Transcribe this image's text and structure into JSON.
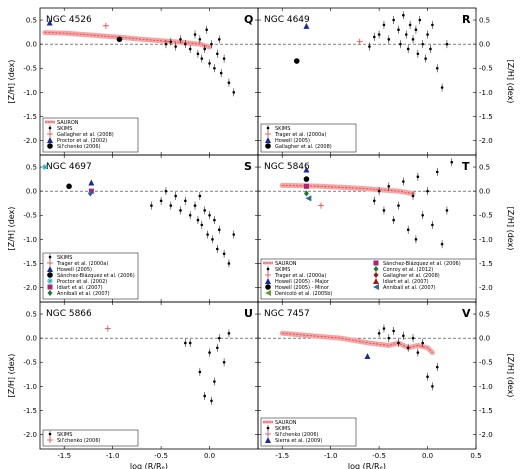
{
  "figure": {
    "xlabel": "log (R/Rₑ)",
    "ylabel": "[Z/H] (dex)",
    "xlim": [
      -1.75,
      0.5
    ],
    "ylim": [
      -2.3,
      0.75
    ],
    "xticks": [
      "-1.5",
      "-1.0",
      "-0.5",
      "0.0",
      "0.5"
    ],
    "xticks_left": [
      "-1.5",
      "-1.0",
      "-0.5",
      "0.0"
    ],
    "yticks": [
      "-2.0",
      "-1.5",
      "-1.0",
      "-0.5",
      "0.0",
      "0.5"
    ]
  },
  "colors": {
    "sauron": "#e33b3b",
    "sauron_band": "#f4a6a6",
    "skims": "#000000",
    "trager": "#e33b3b",
    "howell": "#1a2a9c",
    "proctor": "#0ab0c0",
    "gallagher": "#e33b3b",
    "silchenko": "#e33b3b",
    "sanchez": "#b0207a",
    "idiart": "#9c1a1a",
    "annibali": "#2a6a9c",
    "conroy": "#1a7a3a",
    "denicolo": "#6a9c2a",
    "sierra": "#1a2a9c"
  },
  "chart_data": [
    {
      "type": "scatter",
      "galaxy": "NGC 4526",
      "panel": "Q",
      "legend": [
        {
          "label": "SAURON",
          "marker": "band"
        },
        {
          "label": "SKIMS",
          "marker": "dot"
        },
        {
          "label": "Gallagher et al. (2008)",
          "marker": "plus"
        },
        {
          "label": "Proctor et al. (2002)",
          "marker": "triangle"
        },
        {
          "label": "Sil'chenko (2006)",
          "marker": "circle"
        }
      ],
      "band": {
        "x": [
          -1.7,
          -1.5,
          -1.3,
          -1.1,
          -0.9,
          -0.7,
          -0.5,
          -0.3,
          -0.1,
          0.0
        ],
        "y": [
          0.24,
          0.23,
          0.2,
          0.17,
          0.14,
          0.1,
          0.07,
          0.04,
          0.0,
          -0.06
        ]
      },
      "skims": {
        "x": [
          -0.45,
          -0.4,
          -0.35,
          -0.3,
          -0.25,
          -0.2,
          -0.15,
          -0.12,
          -0.1,
          -0.08,
          -0.05,
          -0.03,
          0.0,
          0.02,
          0.05,
          0.08,
          0.1,
          0.12,
          0.15,
          0.2,
          0.25
        ],
        "y": [
          0.0,
          0.05,
          -0.05,
          0.1,
          0.0,
          -0.1,
          0.2,
          -0.2,
          0.1,
          -0.3,
          -0.1,
          0.3,
          -0.4,
          0.0,
          -0.5,
          -0.2,
          0.1,
          -0.6,
          -0.3,
          -0.8,
          -1.0
        ]
      },
      "points": [
        {
          "x": -1.65,
          "y": 0.45,
          "marker": "triangle",
          "color": "howell"
        },
        {
          "x": -1.07,
          "y": 0.38,
          "marker": "plus",
          "color": "gallagher"
        },
        {
          "x": -0.93,
          "y": 0.1,
          "marker": "circle",
          "color": "skims"
        }
      ]
    },
    {
      "type": "scatter",
      "galaxy": "NGC 4649",
      "panel": "R",
      "legend": [
        {
          "label": "SKIMS",
          "marker": "dot"
        },
        {
          "label": "Trager et al. (2000a)",
          "marker": "plus"
        },
        {
          "label": "Howell (2005)",
          "marker": "triangle"
        },
        {
          "label": "Gallagher et al. (2008)",
          "marker": "circle"
        }
      ],
      "band": null,
      "skims": {
        "x": [
          -0.5,
          -0.45,
          -0.4,
          -0.35,
          -0.3,
          -0.28,
          -0.25,
          -0.22,
          -0.2,
          -0.18,
          -0.15,
          -0.12,
          -0.1,
          -0.08,
          -0.05,
          -0.02,
          0.0,
          0.03,
          0.05,
          0.1,
          0.15,
          0.2,
          -0.6,
          -0.55
        ],
        "y": [
          0.2,
          0.4,
          0.1,
          0.5,
          0.3,
          0.0,
          0.6,
          0.2,
          -0.1,
          0.4,
          0.1,
          0.3,
          -0.2,
          0.5,
          0.0,
          -0.3,
          0.2,
          -0.1,
          0.4,
          -0.5,
          -0.9,
          0.0,
          -0.05,
          0.15
        ]
      },
      "points": [
        {
          "x": -1.25,
          "y": 0.38,
          "marker": "triangle",
          "color": "howell"
        },
        {
          "x": -1.35,
          "y": -0.35,
          "marker": "circle",
          "color": "skims"
        },
        {
          "x": -0.7,
          "y": 0.05,
          "marker": "plus",
          "color": "trager"
        }
      ]
    },
    {
      "type": "scatter",
      "galaxy": "NGC 4697",
      "panel": "S",
      "legend": [
        {
          "label": "SKIMS",
          "marker": "dot"
        },
        {
          "label": "Trager et al. (2000a)",
          "marker": "plus"
        },
        {
          "label": "Howell (2005)",
          "marker": "triangle"
        },
        {
          "label": "Sánchez-Blázquez et al. (2006)",
          "marker": "circle"
        },
        {
          "label": "Proctor et al. (2002)",
          "marker": "star"
        },
        {
          "label": "Idiart et al. (2007)",
          "marker": "square"
        },
        {
          "label": "Annibali et al. (2007)",
          "marker": "diamond"
        }
      ],
      "band": null,
      "skims": {
        "x": [
          -0.6,
          -0.5,
          -0.45,
          -0.4,
          -0.35,
          -0.3,
          -0.25,
          -0.2,
          -0.15,
          -0.12,
          -0.1,
          -0.08,
          -0.05,
          -0.02,
          0.0,
          0.03,
          0.05,
          0.08,
          0.1,
          0.15,
          0.2,
          0.25
        ],
        "y": [
          -0.3,
          -0.2,
          0.0,
          -0.3,
          -0.1,
          -0.4,
          -0.2,
          -0.5,
          -0.3,
          -0.6,
          -0.1,
          -0.7,
          -0.4,
          -0.9,
          -0.5,
          -1.0,
          -0.6,
          -1.2,
          -0.8,
          -1.3,
          -1.5,
          -0.9
        ]
      },
      "points": [
        {
          "x": -1.45,
          "y": 0.1,
          "marker": "circle",
          "color": "skims"
        },
        {
          "x": -1.22,
          "y": 0.18,
          "marker": "triangle",
          "color": "howell"
        },
        {
          "x": -1.22,
          "y": 0.0,
          "marker": "square",
          "color": "sanchez"
        },
        {
          "x": -1.23,
          "y": -0.05,
          "marker": "diamond",
          "color": "annibali"
        },
        {
          "x": -1.7,
          "y": 0.5,
          "marker": "star",
          "color": "proctor"
        }
      ]
    },
    {
      "type": "scatter",
      "galaxy": "NGC 5846",
      "panel": "T",
      "legend": [
        {
          "label": "SAURON",
          "marker": "band"
        },
        {
          "label": "SKIMS",
          "marker": "dot"
        },
        {
          "label": "Trager et al. (2000a)",
          "marker": "plus"
        },
        {
          "label": "Howell (2005) - Major",
          "marker": "triangle"
        },
        {
          "label": "Howell (2005) - Minor",
          "marker": "circle"
        },
        {
          "label": "Denicoló et al. (2005b)",
          "marker": "tri-left"
        },
        {
          "label": "Sánchez-Blázquez et al. (2006)",
          "marker": "square"
        },
        {
          "label": "Conroy et al. (2012)",
          "marker": "diamond"
        },
        {
          "label": "Gallagher et al. (2008)",
          "marker": "diamond2"
        },
        {
          "label": "Idiart et al. (2007)",
          "marker": "triangle2"
        },
        {
          "label": "Annibali et al. (2007)",
          "marker": "tri-left2"
        }
      ],
      "band": {
        "x": [
          -1.5,
          -1.3,
          -1.1,
          -0.9,
          -0.7,
          -0.5,
          -0.3,
          -0.15
        ],
        "y": [
          0.12,
          0.11,
          0.1,
          0.08,
          0.06,
          0.03,
          0.0,
          -0.05
        ]
      },
      "skims": {
        "x": [
          -0.55,
          -0.5,
          -0.45,
          -0.4,
          -0.35,
          -0.3,
          -0.25,
          -0.2,
          -0.15,
          -0.12,
          -0.1,
          -0.05,
          0.0,
          0.05,
          0.1,
          0.15,
          0.2,
          0.25
        ],
        "y": [
          -0.2,
          0.0,
          -0.4,
          0.1,
          -0.6,
          -0.3,
          0.2,
          -0.8,
          -0.1,
          -1.0,
          0.3,
          -0.5,
          0.0,
          -0.7,
          0.4,
          -1.1,
          -0.4,
          0.6
        ]
      },
      "points": [
        {
          "x": -1.25,
          "y": 0.45,
          "marker": "triangle",
          "color": "howell"
        },
        {
          "x": -1.25,
          "y": 0.25,
          "marker": "circle",
          "color": "skims"
        },
        {
          "x": -1.25,
          "y": 0.1,
          "marker": "square",
          "color": "sanchez"
        },
        {
          "x": -1.25,
          "y": -0.05,
          "marker": "diamond",
          "color": "conroy"
        },
        {
          "x": -1.23,
          "y": -0.15,
          "marker": "tri-left",
          "color": "annibali"
        },
        {
          "x": -1.1,
          "y": -0.3,
          "marker": "plus",
          "color": "trager"
        }
      ]
    },
    {
      "type": "scatter",
      "galaxy": "NGC 5866",
      "panel": "U",
      "legend": [
        {
          "label": "SKIMS",
          "marker": "dot"
        },
        {
          "label": "Sil'chenko (2006)",
          "marker": "plus"
        }
      ],
      "band": null,
      "skims": {
        "x": [
          -0.25,
          -0.2,
          -0.1,
          -0.05,
          0.0,
          0.05,
          0.1,
          0.15,
          0.2,
          0.02,
          0.08
        ],
        "y": [
          -0.1,
          -0.1,
          -0.7,
          -1.2,
          -0.3,
          -0.9,
          0.0,
          -0.5,
          0.1,
          -1.3,
          -0.2
        ]
      },
      "points": [
        {
          "x": -1.05,
          "y": 0.2,
          "marker": "plus",
          "color": "silchenko"
        }
      ]
    },
    {
      "type": "scatter",
      "galaxy": "NGC 7457",
      "panel": "V",
      "legend": [
        {
          "label": "SAURON",
          "marker": "band"
        },
        {
          "label": "SKIMS",
          "marker": "dot"
        },
        {
          "label": "Sil'chenko (2006)",
          "marker": "plus"
        },
        {
          "label": "Sierra et al. (2009)",
          "marker": "triangle"
        }
      ],
      "band": {
        "x": [
          -1.5,
          -1.2,
          -0.9,
          -0.6,
          -0.4,
          -0.3,
          -0.2,
          -0.1,
          0.0,
          0.05
        ],
        "y": [
          0.1,
          0.05,
          0.0,
          -0.1,
          -0.15,
          -0.1,
          -0.2,
          -0.15,
          -0.2,
          -0.3
        ]
      },
      "skims": {
        "x": [
          -0.5,
          -0.45,
          -0.4,
          -0.35,
          -0.3,
          -0.25,
          -0.2,
          -0.15,
          -0.1,
          -0.05,
          0.0,
          0.05,
          0.1
        ],
        "y": [
          0.1,
          0.2,
          0.0,
          0.15,
          -0.1,
          0.05,
          -0.2,
          0.0,
          -0.3,
          -0.1,
          -0.8,
          -1.0,
          -0.6
        ]
      },
      "points": [
        {
          "x": -0.62,
          "y": -0.37,
          "marker": "triangle",
          "color": "sierra"
        }
      ]
    }
  ]
}
